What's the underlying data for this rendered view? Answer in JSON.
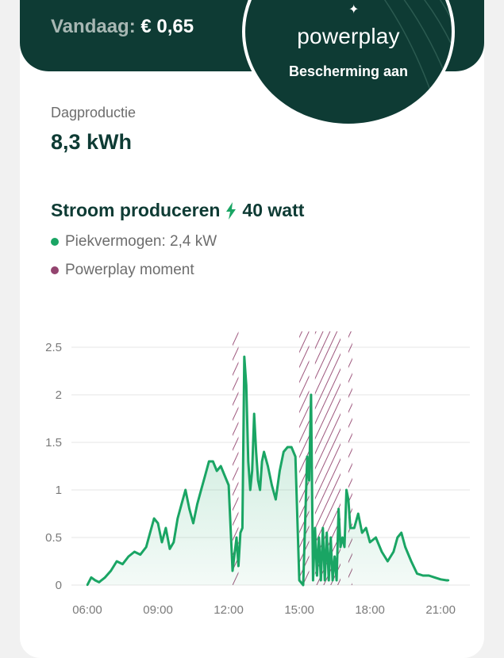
{
  "header": {
    "today_label": "Vandaag:",
    "today_value": "€ 0,65"
  },
  "badge": {
    "brand": "powerplay",
    "status": "Bescherming aan",
    "spark_icon": "sparkle-icon"
  },
  "production": {
    "label": "Dagproductie",
    "value": "8,3 kWh"
  },
  "current": {
    "title": "Stroom produceren",
    "value": "40 watt",
    "icon": "lightning-bolt-icon"
  },
  "legend": [
    {
      "label": "Piekvermogen: 2,4 kW",
      "color": "#1aa564"
    },
    {
      "label": "Powerplay moment",
      "color": "#93446f"
    }
  ],
  "colors": {
    "dark_green": "#0e3b34",
    "series_green": "#1aa564",
    "moment_purple": "#93446f"
  },
  "chart_data": {
    "type": "area",
    "x_tick_labels": [
      "06:00",
      "09:00",
      "12:00",
      "15:00",
      "18:00",
      "21:00"
    ],
    "y_tick_labels": [
      "0",
      "0.5",
      "1",
      "1.5",
      "2",
      "2.5"
    ],
    "ylim": [
      0,
      2.5
    ],
    "xlim": [
      "06:00",
      "21:30"
    ],
    "grid": true,
    "series": [
      {
        "x": [
          "06:00",
          "06:10",
          "06:20",
          "06:30",
          "06:45",
          "07:00",
          "07:15",
          "07:30",
          "07:45",
          "08:00",
          "08:15",
          "08:30",
          "08:40",
          "08:50",
          "09:00",
          "09:10",
          "09:20",
          "09:30",
          "09:40",
          "09:50",
          "10:00",
          "10:10",
          "10:20",
          "10:30",
          "10:40",
          "10:50",
          "11:00",
          "11:10",
          "11:20",
          "11:30",
          "11:40",
          "11:50",
          "12:00",
          "12:10",
          "12:20",
          "12:25",
          "12:30",
          "12:35",
          "12:40",
          "12:45",
          "12:50",
          "12:55",
          "13:00",
          "13:05",
          "13:10",
          "13:15",
          "13:20",
          "13:25",
          "13:30",
          "13:40",
          "13:50",
          "14:00",
          "14:10",
          "14:20",
          "14:30",
          "14:40",
          "14:50",
          "15:00",
          "15:10",
          "15:20",
          "15:25",
          "15:30",
          "15:35",
          "15:40",
          "15:45",
          "15:50",
          "15:55",
          "16:00",
          "16:05",
          "16:10",
          "16:15",
          "16:20",
          "16:25",
          "16:30",
          "16:35",
          "16:40",
          "16:45",
          "16:50",
          "16:55",
          "17:00",
          "17:05",
          "17:10",
          "17:20",
          "17:30",
          "17:40",
          "17:50",
          "18:00",
          "18:15",
          "18:30",
          "18:45",
          "19:00",
          "19:10",
          "19:20",
          "19:30",
          "19:45",
          "20:00",
          "20:15",
          "20:30",
          "20:45",
          "21:00",
          "21:15",
          "21:20"
        ],
        "values": [
          0,
          0.08,
          0.05,
          0.03,
          0.08,
          0.15,
          0.25,
          0.22,
          0.3,
          0.35,
          0.32,
          0.4,
          0.55,
          0.7,
          0.65,
          0.45,
          0.6,
          0.38,
          0.45,
          0.7,
          0.85,
          1.0,
          0.8,
          0.65,
          0.85,
          1.0,
          1.15,
          1.3,
          1.3,
          1.2,
          1.25,
          1.15,
          1.05,
          0.15,
          0.5,
          0.2,
          0.55,
          0.6,
          2.4,
          2.1,
          1.3,
          1.0,
          1.2,
          1.8,
          1.4,
          1.1,
          1.0,
          1.3,
          1.4,
          1.25,
          1.05,
          0.9,
          1.2,
          1.4,
          1.45,
          1.45,
          1.35,
          0.05,
          0.0,
          1.35,
          1.1,
          2.0,
          0.05,
          0.6,
          0.1,
          0.5,
          0.05,
          0.6,
          0.05,
          0.55,
          0.05,
          0.5,
          0.05,
          0.3,
          0.05,
          0.8,
          0.4,
          0.5,
          0.4,
          1.0,
          0.9,
          0.6,
          0.6,
          0.75,
          0.55,
          0.6,
          0.45,
          0.5,
          0.35,
          0.25,
          0.35,
          0.5,
          0.55,
          0.4,
          0.25,
          0.12,
          0.1,
          0.1,
          0.08,
          0.06,
          0.05,
          0.05
        ]
      }
    ],
    "moments": [
      {
        "start": "12:10",
        "end": "12:25"
      },
      {
        "start": "15:00",
        "end": "15:25"
      },
      {
        "start": "15:40",
        "end": "16:45"
      },
      {
        "start": "17:05",
        "end": "17:15"
      }
    ]
  }
}
